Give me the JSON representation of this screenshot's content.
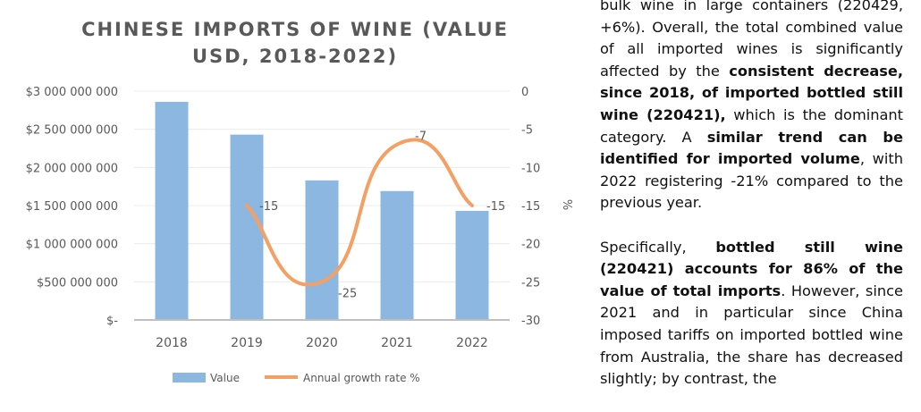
{
  "chart_data": {
    "type": "bar+line",
    "title": "CHINESE IMPORTS OF WINE (VALUE USD, 2018-2022)",
    "categories": [
      "2018",
      "2019",
      "2020",
      "2021",
      "2022"
    ],
    "series": [
      {
        "name": "Value",
        "type": "bar",
        "axis": "left",
        "values": [
          2860000000,
          2430000000,
          1830000000,
          1690000000,
          1430000000
        ],
        "color": "#8cb7e0"
      },
      {
        "name": "Annual growth rate %",
        "type": "line",
        "axis": "right",
        "x": [
          "2019",
          "2020",
          "2021",
          "2022"
        ],
        "values": [
          -15,
          -25,
          -7,
          -15
        ],
        "data_labels": [
          "-15",
          "-25",
          "-7",
          "-15"
        ],
        "color": "#f4a064"
      }
    ],
    "left_axis": {
      "ylim": [
        0,
        3000000000
      ],
      "ticks": [
        "$-",
        "$500 000 000",
        "$1 000 000 000",
        "$1 500 000 000",
        "$2 000 000 000",
        "$2 500 000 000",
        "$3 000 000 000"
      ]
    },
    "right_axis": {
      "label": "%",
      "ylim": [
        -30,
        0
      ],
      "ticks": [
        "-30",
        "-25",
        "-20",
        "-15",
        "-10",
        "-5",
        "0"
      ]
    },
    "grid": true,
    "legend": "bottom"
  },
  "text": {
    "p1": [
      {
        "t": "bulk wine in large containers (220429, +6%). Overall, the total combined value of all imported wines is significantly affected by the ",
        "b": false
      },
      {
        "t": "consistent decrease, since 2018, of imported bottled still wine (220421),",
        "b": true
      },
      {
        "t": " which is the dominant category. A ",
        "b": false
      },
      {
        "t": "similar trend can be identified for imported volume",
        "b": true
      },
      {
        "t": ", with 2022 registering -21% compared to the previous year.",
        "b": false
      }
    ],
    "p2": [
      {
        "t": "Specifically, ",
        "b": false
      },
      {
        "t": "bottled still wine (220421) accounts for 86% of the value of total imports",
        "b": true
      },
      {
        "t": ". However, since 2021 and in particular since China imposed tariffs on imported bottled wine from Australia, the share has decreased slightly; by contrast, the",
        "b": false
      }
    ]
  }
}
